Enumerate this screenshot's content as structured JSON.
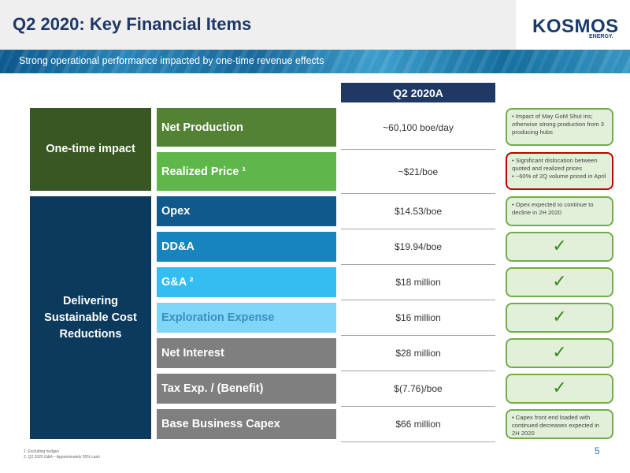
{
  "header": {
    "title": "Q2 2020: Key Financial Items",
    "subtitle": "Strong operational performance impacted by one-time revenue effects",
    "logo": "KOSMOS",
    "logo_sub": "ENERGY."
  },
  "table": {
    "column_header": "Q2 2020A",
    "categories": [
      {
        "label": "One-time impact",
        "color": "#385723"
      },
      {
        "label": "Delivering Sustainable Cost Reductions",
        "color": "#0b3a5c"
      }
    ],
    "rows": [
      {
        "label": "Net Production",
        "value": "~60,100 boe/day",
        "color": "#548235",
        "note": "• Impact of May GoM Shut ins; otherwise strong production from 3 producing hubs",
        "note_style": "green"
      },
      {
        "label": "Realized Price ¹",
        "value": "~$21/boe",
        "color": "#5fb64a",
        "note": "• Significant dislocation between quoted and realized prices\n• ~60% of 2Q volume priced in April",
        "note_style": "red"
      },
      {
        "label": "Opex",
        "value": "$14.53/boe",
        "color": "#0f5a8b",
        "note": "• Opex expected to continue to decline in 2H 2020",
        "note_style": "green"
      },
      {
        "label": "DD&A",
        "value": "$19.94/boe",
        "color": "#1784bd",
        "note": "✓",
        "note_style": "check"
      },
      {
        "label": "G&A ²",
        "value": "$18 million",
        "color": "#34bdf0",
        "note": "✓",
        "note_style": "check"
      },
      {
        "label": "Exploration Expense",
        "value": "$16 million",
        "color": "#7fd6f8",
        "note": "✓",
        "note_style": "check"
      },
      {
        "label": "Net Interest",
        "value": "$28 million",
        "color": "#7f7f7f",
        "note": "✓",
        "note_style": "check"
      },
      {
        "label": "Tax Exp. / (Benefit)",
        "value": "$(7.76)/boe",
        "color": "#7f7f7f",
        "note": "✓",
        "note_style": "check"
      },
      {
        "label": "Base Business Capex",
        "value": "$66 million",
        "color": "#7f7f7f",
        "note": "• Capex front end loaded with continued decreases expected in 2H 2020",
        "note_style": "green"
      }
    ]
  },
  "footnotes": [
    "1.  Excluding hedges",
    "2.  Q2 2020 G&A – Approximately 55% cash"
  ],
  "page_number": "5",
  "check_color": "#3a8a1f"
}
